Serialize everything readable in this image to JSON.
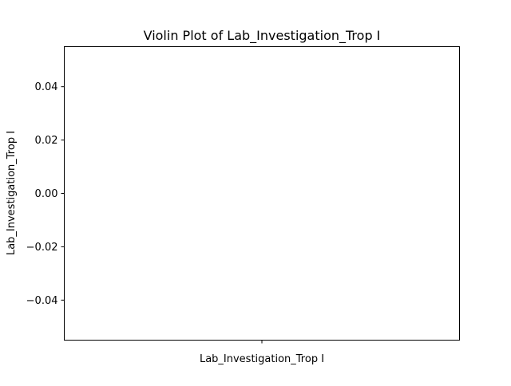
{
  "chart_data": {
    "type": "violin",
    "title": "Violin Plot of Lab_Investigation_Trop I",
    "xlabel": "Lab_Investigation_Trop I",
    "ylabel": "Lab_Investigation_Trop I",
    "categories": [
      ""
    ],
    "ylim": [
      -0.055,
      0.055
    ],
    "yticks": [
      -0.04,
      -0.02,
      0.0,
      0.02,
      0.04
    ],
    "ytick_labels": [
      "−0.04",
      "−0.02",
      "0.00",
      "0.02",
      "0.04"
    ],
    "xticks": [
      0
    ],
    "series": [],
    "grid": false,
    "legend": "none"
  }
}
